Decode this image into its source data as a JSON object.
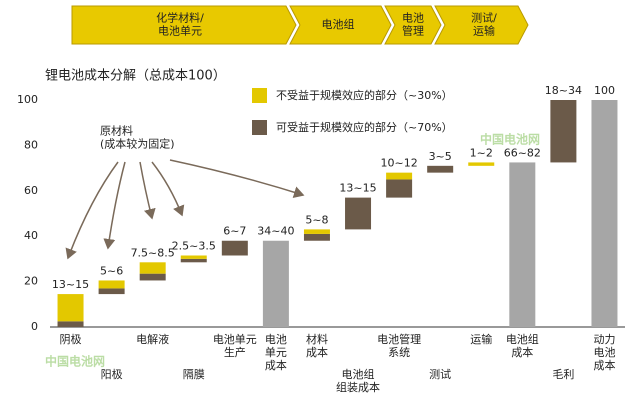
{
  "process": [
    "化学材料/\n电池单元",
    "电池组",
    "电池\n管理",
    "测试/\n运输"
  ],
  "watermark": "中国电池网",
  "chart_data": {
    "type": "waterfall",
    "title": "锂电池成本分解（总成本100）",
    "annotation": "原材料\n(成本较为固定)",
    "categories": [
      "阴极",
      "阳极",
      "电解液",
      "隔膜",
      "电池单元\n生产",
      "电池\n单元\n成本",
      "材料\n成本",
      "电池组\n组装成本",
      "电池管理\n系统",
      "测试",
      "运输",
      "电池组\n成本",
      "毛利",
      "动力\n电池\n成本"
    ],
    "label_row": [
      0,
      1,
      0,
      1,
      0,
      0,
      0,
      1,
      0,
      1,
      0,
      0,
      1,
      0
    ],
    "series": [
      {
        "name": "不受益于规模效应的部分（~30%）",
        "color": "#e3c800",
        "values": [
          12,
          3.5,
          5,
          1.5,
          null,
          null,
          2,
          null,
          3,
          null,
          1.5,
          null,
          null,
          null
        ]
      },
      {
        "name": "可受益于规模效应的部分（~70%）",
        "color": "#6b5a49",
        "values": [
          2.5,
          2.5,
          3,
          1.5,
          6.5,
          null,
          3,
          14,
          8,
          3,
          null,
          null,
          27.5,
          null
        ]
      }
    ],
    "totals": {
      "color": "#a6a6a6",
      "values": [
        null,
        null,
        null,
        null,
        null,
        38,
        null,
        null,
        null,
        null,
        null,
        72.5,
        null,
        100
      ]
    },
    "value_labels": [
      "13~15",
      "5~6",
      "7.5~8.5",
      "2.5~3.5",
      "6~7",
      "34~40",
      "5~8",
      "13~15",
      "10~12",
      "3~5",
      "1~2",
      "66~82",
      "18~34",
      "100"
    ],
    "ylim": [
      0,
      100
    ],
    "yticks": [
      0,
      20,
      40,
      60,
      80,
      100
    ]
  }
}
